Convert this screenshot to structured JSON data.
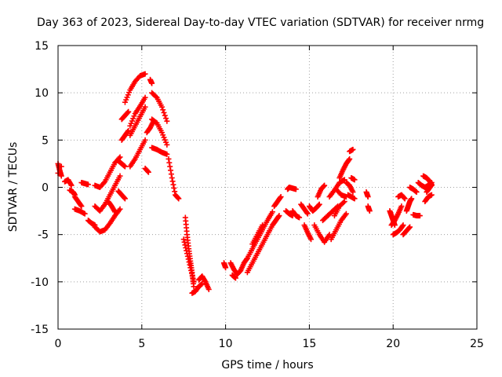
{
  "chart_data": {
    "type": "scatter",
    "title": "Day 363 of 2023, Sidereal Day-to-day VTEC variation (SDTVAR) for receiver nrmg",
    "xlabel": "GPS time / hours",
    "ylabel": "SDTVAR / TECUs",
    "xlim": [
      0,
      25
    ],
    "ylim": [
      -15,
      15
    ],
    "xticks": [
      0,
      5,
      10,
      15,
      20,
      25
    ],
    "yticks": [
      -15,
      -10,
      -5,
      0,
      5,
      10,
      15
    ],
    "xtick_labels": [
      "0",
      "5",
      "10",
      "15",
      "20",
      "25"
    ],
    "ytick_labels": [
      "-15",
      "-10",
      "-5",
      "0",
      "5",
      "10",
      "15"
    ],
    "grid": true,
    "marker": "+",
    "color": "#ff0000",
    "segments": [
      {
        "x": [
          0.0,
          0.1,
          0.2
        ],
        "y": [
          2.5,
          1.8,
          1.2
        ]
      },
      {
        "x": [
          0.4,
          0.6,
          0.8
        ],
        "y": [
          0.6,
          0.8,
          0.2
        ]
      },
      {
        "x": [
          0.7,
          0.9,
          1.0
        ],
        "y": [
          -0.3,
          -0.5,
          -0.8
        ]
      },
      {
        "x": [
          1.0,
          1.2,
          1.4
        ],
        "y": [
          -1.0,
          -1.5,
          -2.0
        ]
      },
      {
        "x": [
          1.0,
          1.3,
          1.6
        ],
        "y": [
          -2.3,
          -2.5,
          -2.8
        ]
      },
      {
        "x": [
          1.4,
          1.6,
          1.8
        ],
        "y": [
          0.5,
          0.4,
          0.3
        ]
      },
      {
        "x": [
          1.8,
          2.0,
          2.2
        ],
        "y": [
          -3.5,
          -3.8,
          -4.0
        ]
      },
      {
        "x": [
          2.2,
          2.5,
          2.8,
          3.1,
          3.4,
          3.7
        ],
        "y": [
          -4.2,
          -4.7,
          -4.5,
          -3.8,
          -3.0,
          -2.3
        ]
      },
      {
        "x": [
          2.2,
          2.5,
          2.8,
          3.1,
          3.4,
          3.7
        ],
        "y": [
          -2.0,
          -2.5,
          -1.8,
          -0.8,
          0.2,
          1.2
        ]
      },
      {
        "x": [
          2.2,
          2.5,
          2.8,
          3.1,
          3.4,
          3.7
        ],
        "y": [
          0.2,
          0.0,
          0.6,
          1.6,
          2.6,
          3.2
        ]
      },
      {
        "x": [
          3.0,
          3.2,
          3.4
        ],
        "y": [
          -1.5,
          -2.0,
          -2.6
        ]
      },
      {
        "x": [
          3.6,
          3.8,
          4.0
        ],
        "y": [
          -0.4,
          -0.8,
          -1.2
        ]
      },
      {
        "x": [
          3.6,
          3.8,
          4.0
        ],
        "y": [
          2.8,
          2.5,
          2.2
        ]
      },
      {
        "x": [
          3.8,
          4.0,
          4.2
        ],
        "y": [
          5.0,
          5.5,
          6.0
        ]
      },
      {
        "x": [
          3.8,
          4.0,
          4.2
        ],
        "y": [
          7.2,
          7.6,
          8.0
        ]
      },
      {
        "x": [
          4.3,
          4.6,
          4.9,
          5.2
        ],
        "y": [
          2.2,
          3.0,
          4.0,
          5.0
        ]
      },
      {
        "x": [
          4.3,
          4.6,
          4.9,
          5.2
        ],
        "y": [
          5.5,
          6.5,
          7.5,
          8.5
        ]
      },
      {
        "x": [
          4.3,
          4.6,
          4.9,
          5.2
        ],
        "y": [
          6.5,
          7.8,
          8.6,
          9.5
        ]
      },
      {
        "x": [
          4.0,
          4.3,
          4.6,
          4.9,
          5.2
        ],
        "y": [
          9.0,
          10.3,
          11.2,
          11.8,
          12.0
        ]
      },
      {
        "x": [
          5.5,
          5.6
        ],
        "y": [
          11.4,
          11.0
        ]
      },
      {
        "x": [
          5.3,
          5.5,
          5.7
        ],
        "y": [
          5.8,
          6.3,
          7.0
        ]
      },
      {
        "x": [
          5.2,
          5.4
        ],
        "y": [
          2.0,
          1.6
        ]
      },
      {
        "x": [
          5.6,
          5.9,
          6.2,
          6.5
        ],
        "y": [
          10.0,
          9.5,
          8.5,
          7.0
        ]
      },
      {
        "x": [
          5.6,
          5.9,
          6.2,
          6.5
        ],
        "y": [
          7.2,
          6.8,
          5.8,
          4.5
        ]
      },
      {
        "x": [
          5.6,
          5.9,
          6.2,
          6.5
        ],
        "y": [
          4.2,
          4.0,
          3.7,
          3.5
        ]
      },
      {
        "x": [
          6.6,
          6.8,
          7.0,
          7.2
        ],
        "y": [
          3.0,
          1.0,
          -0.8,
          -1.2
        ]
      },
      {
        "x": [
          7.6,
          7.7,
          7.8,
          7.9,
          8.0,
          8.1
        ],
        "y": [
          -3.2,
          -5.0,
          -6.5,
          -7.8,
          -9.0,
          -10.5
        ]
      },
      {
        "x": [
          7.5,
          7.7,
          7.9,
          8.1
        ],
        "y": [
          -5.5,
          -7.0,
          -8.5,
          -10.0
        ]
      },
      {
        "x": [
          8.0,
          8.2,
          8.4,
          8.6
        ],
        "y": [
          -11.2,
          -11.0,
          -10.5,
          -10.2
        ]
      },
      {
        "x": [
          8.4,
          8.6,
          8.8,
          9.0
        ],
        "y": [
          -9.8,
          -9.4,
          -10.0,
          -10.8
        ]
      },
      {
        "x": [
          9.9,
          10.0
        ],
        "y": [
          -8.0,
          -8.5
        ]
      },
      {
        "x": [
          10.3,
          10.5,
          10.7,
          10.9,
          11.1,
          11.3
        ],
        "y": [
          -8.0,
          -8.7,
          -9.2,
          -8.8,
          -8.0,
          -7.5
        ]
      },
      {
        "x": [
          10.4,
          10.6
        ],
        "y": [
          -9.3,
          -9.6
        ]
      },
      {
        "x": [
          11.3,
          11.6,
          11.9,
          12.2,
          12.5,
          12.8
        ],
        "y": [
          -9.0,
          -8.0,
          -7.0,
          -6.0,
          -5.0,
          -4.0
        ]
      },
      {
        "x": [
          11.3,
          11.6,
          11.9,
          12.2,
          12.5,
          12.8
        ],
        "y": [
          -7.5,
          -6.5,
          -5.5,
          -4.5,
          -3.5,
          -2.6
        ]
      },
      {
        "x": [
          11.6,
          11.9,
          12.2
        ],
        "y": [
          -6.0,
          -5.0,
          -4.0
        ]
      },
      {
        "x": [
          12.8,
          13.0,
          13.2
        ],
        "y": [
          -4.0,
          -3.5,
          -3.0
        ]
      },
      {
        "x": [
          12.9,
          13.1,
          13.3
        ],
        "y": [
          -2.0,
          -1.5,
          -1.0
        ]
      },
      {
        "x": [
          13.6,
          13.8,
          14.0
        ],
        "y": [
          -2.5,
          -2.8,
          -3.0
        ]
      },
      {
        "x": [
          13.7,
          13.8,
          14.0,
          14.2
        ],
        "y": [
          -0.2,
          0.0,
          -0.1,
          -0.2
        ]
      },
      {
        "x": [
          14.0,
          14.2,
          14.4
        ],
        "y": [
          -2.5,
          -3.0,
          -3.2
        ]
      },
      {
        "x": [
          14.5,
          14.7,
          14.9
        ],
        "y": [
          -1.8,
          -2.3,
          -2.8
        ]
      },
      {
        "x": [
          14.7,
          14.9,
          15.1
        ],
        "y": [
          -4.0,
          -4.8,
          -5.5
        ]
      },
      {
        "x": [
          15.0,
          15.2,
          15.4,
          15.6
        ],
        "y": [
          -2.0,
          -2.5,
          -2.2,
          -1.8
        ]
      },
      {
        "x": [
          15.3,
          15.6,
          15.9,
          16.2
        ],
        "y": [
          -4.0,
          -5.0,
          -5.8,
          -5.0
        ]
      },
      {
        "x": [
          15.5,
          15.7,
          15.9
        ],
        "y": [
          -1.0,
          -0.2,
          0.2
        ]
      },
      {
        "x": [
          15.8,
          16.1,
          16.4,
          16.7
        ],
        "y": [
          -3.5,
          -3.0,
          -2.5,
          -2.0
        ]
      },
      {
        "x": [
          16.2,
          16.5,
          16.8,
          17.1
        ],
        "y": [
          -1.0,
          -0.3,
          0.5,
          0.8
        ]
      },
      {
        "x": [
          16.3,
          16.6,
          16.9,
          17.2
        ],
        "y": [
          -5.5,
          -4.5,
          -3.5,
          -2.8
        ]
      },
      {
        "x": [
          16.5,
          16.8,
          17.1
        ],
        "y": [
          -3.0,
          -2.0,
          -1.5
        ]
      },
      {
        "x": [
          16.6,
          16.9,
          17.2
        ],
        "y": [
          -0.2,
          -0.8,
          -1.0
        ]
      },
      {
        "x": [
          16.8,
          17.0,
          17.2,
          17.4
        ],
        "y": [
          1.0,
          1.8,
          2.5,
          3.0
        ]
      },
      {
        "x": [
          17.2,
          17.4,
          17.6
        ],
        "y": [
          0.5,
          0.2,
          -0.5
        ]
      },
      {
        "x": [
          17.4,
          17.6
        ],
        "y": [
          3.8,
          4.0
        ]
      },
      {
        "x": [
          17.3,
          17.5,
          17.7
        ],
        "y": [
          -0.8,
          -1.0,
          -1.2
        ]
      },
      {
        "x": [
          17.5,
          17.7
        ],
        "y": [
          1.0,
          0.8
        ]
      },
      {
        "x": [
          18.4,
          18.5
        ],
        "y": [
          -0.5,
          -1.0
        ]
      },
      {
        "x": [
          18.5,
          18.6
        ],
        "y": [
          -2.0,
          -2.5
        ]
      },
      {
        "x": [
          19.8,
          19.9,
          20.0,
          20.1
        ],
        "y": [
          -2.5,
          -3.0,
          -3.5,
          -4.0
        ]
      },
      {
        "x": [
          19.9,
          20.1,
          20.3,
          20.5
        ],
        "y": [
          -4.0,
          -3.5,
          -2.8,
          -2.0
        ]
      },
      {
        "x": [
          20.0,
          20.2,
          20.4,
          20.6
        ],
        "y": [
          -5.0,
          -4.8,
          -4.5,
          -4.0
        ]
      },
      {
        "x": [
          20.3,
          20.5,
          20.7
        ],
        "y": [
          -1.0,
          -0.8,
          -1.2
        ]
      },
      {
        "x": [
          20.6,
          20.8,
          21.0
        ],
        "y": [
          -5.0,
          -4.6,
          -4.2
        ]
      },
      {
        "x": [
          20.8,
          20.9,
          21.0,
          21.1
        ],
        "y": [
          -2.5,
          -2.0,
          -1.5,
          -1.2
        ]
      },
      {
        "x": [
          21.0,
          21.2,
          21.4
        ],
        "y": [
          0.0,
          -0.2,
          -0.5
        ]
      },
      {
        "x": [
          21.2,
          21.4,
          21.6
        ],
        "y": [
          -2.9,
          -3.0,
          -3.0
        ]
      },
      {
        "x": [
          21.5,
          21.7,
          21.9,
          22.1,
          22.3
        ],
        "y": [
          0.5,
          0.2,
          0.0,
          0.2,
          0.5
        ]
      },
      {
        "x": [
          21.8,
          22.0,
          22.2,
          22.3
        ],
        "y": [
          1.2,
          1.0,
          0.6,
          0.2
        ]
      },
      {
        "x": [
          21.9,
          22.1,
          22.3
        ],
        "y": [
          -1.5,
          -1.0,
          -0.8
        ]
      },
      {
        "x": [
          22.0,
          22.2,
          22.3
        ],
        "y": [
          -0.5,
          0.0,
          0.3
        ]
      },
      {
        "x": [
          0.2
        ],
        "y": [
          2.2
        ]
      },
      {
        "x": [
          0.0
        ],
        "y": [
          1.5
        ]
      }
    ]
  }
}
